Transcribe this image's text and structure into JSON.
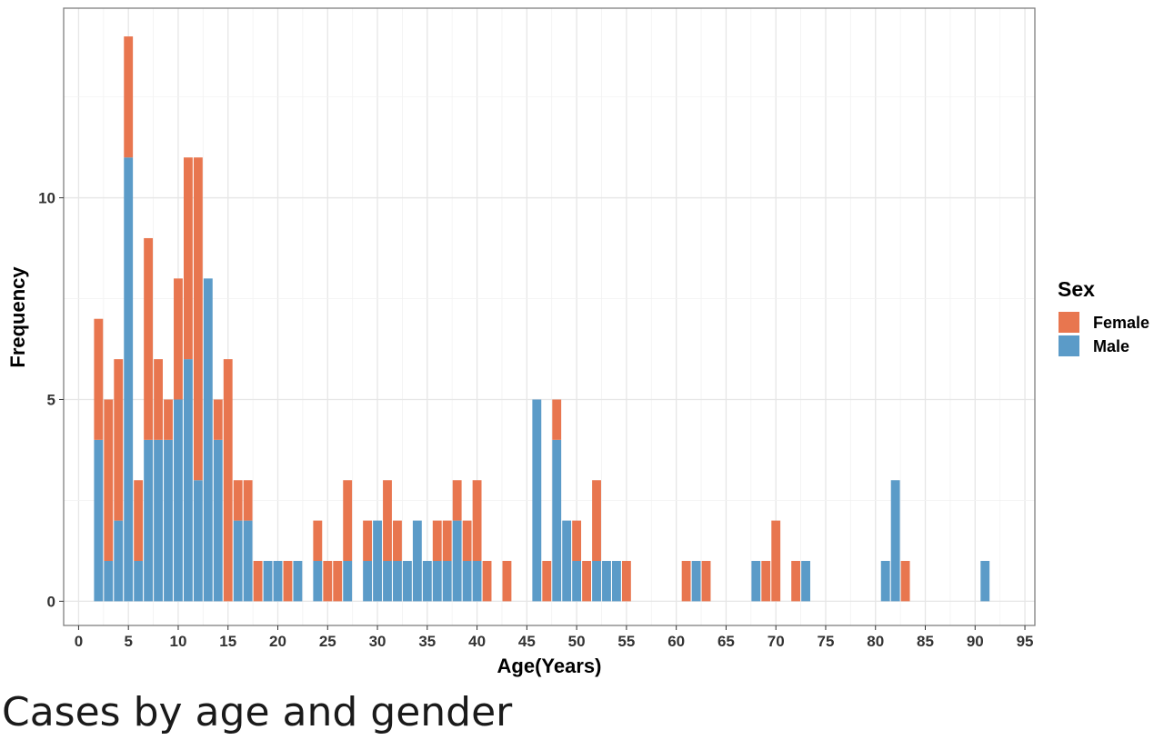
{
  "caption": "Cases by age and gender",
  "chart_data": {
    "type": "bar",
    "stacked": true,
    "xlabel": "Age(Years)",
    "ylabel": "Frequency",
    "xlim": [
      -1.5,
      96
    ],
    "ylim": [
      -0.6,
      14.7
    ],
    "x_ticks": [
      0,
      5,
      10,
      15,
      20,
      25,
      30,
      35,
      40,
      45,
      50,
      55,
      60,
      65,
      70,
      75,
      80,
      85,
      90,
      95
    ],
    "y_ticks": [
      0,
      5,
      10
    ],
    "grid": true,
    "legend": {
      "title": "Sex",
      "position": "right"
    },
    "x": [
      2,
      3,
      4,
      5,
      6,
      7,
      8,
      9,
      10,
      11,
      12,
      13,
      14,
      15,
      16,
      17,
      18,
      19,
      20,
      21,
      22,
      24,
      25,
      26,
      27,
      29,
      30,
      31,
      32,
      33,
      34,
      35,
      36,
      37,
      38,
      39,
      40,
      41,
      43,
      46,
      47,
      48,
      49,
      50,
      51,
      52,
      53,
      54,
      55,
      61,
      62,
      63,
      68,
      69,
      70,
      72,
      73,
      81,
      82,
      83,
      91
    ],
    "series": [
      {
        "name": "Male",
        "color": "#5b9bc8",
        "values": [
          4,
          1,
          2,
          11,
          1,
          4,
          4,
          4,
          5,
          6,
          3,
          8,
          4,
          0,
          2,
          2,
          0,
          1,
          1,
          0,
          1,
          1,
          0,
          0,
          1,
          1,
          2,
          1,
          1,
          1,
          2,
          1,
          1,
          1,
          2,
          1,
          1,
          0,
          0,
          5,
          0,
          4,
          2,
          1,
          0,
          1,
          1,
          1,
          0,
          0,
          1,
          0,
          1,
          0,
          0,
          0,
          1,
          1,
          3,
          0,
          1
        ]
      },
      {
        "name": "Female",
        "color": "#e8764f",
        "values": [
          3,
          4,
          4,
          3,
          2,
          5,
          2,
          1,
          3,
          5,
          8,
          0,
          1,
          6,
          1,
          1,
          1,
          0,
          0,
          1,
          0,
          1,
          1,
          1,
          2,
          1,
          0,
          2,
          1,
          0,
          0,
          0,
          1,
          1,
          1,
          1,
          2,
          1,
          1,
          0,
          1,
          1,
          0,
          1,
          1,
          2,
          0,
          0,
          1,
          1,
          0,
          1,
          0,
          1,
          2,
          1,
          0,
          0,
          0,
          1,
          0
        ]
      }
    ]
  }
}
